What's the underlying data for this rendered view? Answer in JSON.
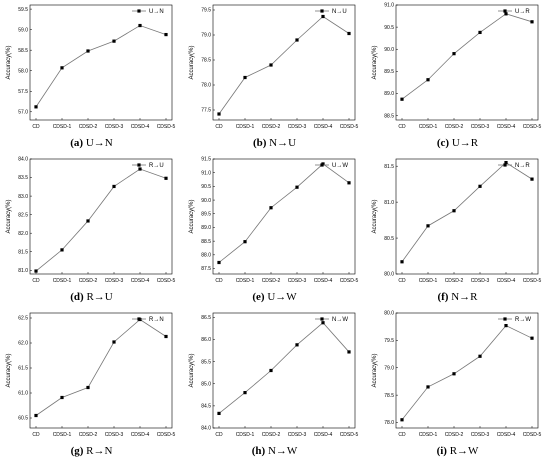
{
  "chart_data": [
    {
      "type": "line",
      "letter": "(a)",
      "subtitle": "U→N",
      "legend": "U→N",
      "ylabel": "Accuracy(%)",
      "categories": [
        "CD",
        "CDSD-1",
        "CDSD-2",
        "CDSD-3",
        "CDSD-4",
        "CDSD-5"
      ],
      "ylim": [
        56.8,
        59.6
      ],
      "yticks": [
        "57.0",
        "57.5",
        "58.0",
        "58.5",
        "59.0",
        "59.5"
      ],
      "ytick_values": [
        57.0,
        57.5,
        58.0,
        58.5,
        59.0,
        59.5
      ],
      "series": [
        {
          "values": [
            57.12,
            58.07,
            58.48,
            58.72,
            59.1,
            58.88
          ]
        }
      ]
    },
    {
      "type": "line",
      "letter": "(b)",
      "subtitle": "N→U",
      "legend": "N→U",
      "ylabel": "Accuracy(%)",
      "categories": [
        "CD",
        "CDSD-1",
        "CDSD-2",
        "CDSD-3",
        "CDSD-4",
        "CDSD-5"
      ],
      "ylim": [
        77.3,
        79.6
      ],
      "yticks": [
        "77.5",
        "78.0",
        "78.5",
        "79.0",
        "79.5"
      ],
      "ytick_values": [
        77.5,
        78.0,
        78.5,
        79.0,
        79.5
      ],
      "series": [
        {
          "values": [
            77.42,
            78.15,
            78.4,
            78.9,
            79.37,
            79.03
          ]
        }
      ]
    },
    {
      "type": "line",
      "letter": "(c)",
      "subtitle": "U→R",
      "legend": "U→R",
      "ylabel": "Accuracy(%)",
      "categories": [
        "CD",
        "CDSD-1",
        "CDSD-2",
        "CDSD-3",
        "CDSD-4",
        "CDSD-5"
      ],
      "ylim": [
        88.4,
        91.0
      ],
      "yticks": [
        "88.5",
        "89.0",
        "89.5",
        "90.0",
        "90.5",
        "91.0"
      ],
      "ytick_values": [
        88.5,
        89.0,
        89.5,
        90.0,
        90.5,
        91.0
      ],
      "series": [
        {
          "values": [
            88.87,
            89.31,
            89.9,
            90.38,
            90.8,
            90.62
          ]
        }
      ]
    },
    {
      "type": "line",
      "letter": "(d)",
      "subtitle": "R→U",
      "legend": "R→U",
      "ylabel": "Accuracy(%)",
      "categories": [
        "CD",
        "CDSD-1",
        "CDSD-2",
        "CDSD-3",
        "CDSD-4",
        "CDSD-5"
      ],
      "ylim": [
        80.9,
        84.0
      ],
      "yticks": [
        "81.0",
        "81.5",
        "82.0",
        "82.5",
        "83.0",
        "83.5",
        "84.0"
      ],
      "ytick_values": [
        81.0,
        81.5,
        82.0,
        82.5,
        83.0,
        83.5,
        84.0
      ],
      "series": [
        {
          "values": [
            80.98,
            81.55,
            82.33,
            83.26,
            83.73,
            83.48
          ]
        }
      ]
    },
    {
      "type": "line",
      "letter": "(e)",
      "subtitle": "U→W",
      "legend": "U→W",
      "ylabel": "Accuracy(%)",
      "categories": [
        "CD",
        "CDSD-1",
        "CDSD-2",
        "CDSD-3",
        "CDSD-4",
        "CDSD-5"
      ],
      "ylim": [
        87.3,
        91.5
      ],
      "yticks": [
        "87.5",
        "88.0",
        "88.5",
        "89.0",
        "89.5",
        "90.0",
        "90.5",
        "91.0",
        "91.5"
      ],
      "ytick_values": [
        87.5,
        88.0,
        88.5,
        89.0,
        89.5,
        90.0,
        90.5,
        91.0,
        91.5
      ],
      "series": [
        {
          "values": [
            87.72,
            88.48,
            89.72,
            90.47,
            91.32,
            90.63
          ]
        }
      ]
    },
    {
      "type": "line",
      "letter": "(f)",
      "subtitle": "N→R",
      "legend": "N→R",
      "ylabel": "Accuracy(%)",
      "categories": [
        "CD",
        "CDSD-1",
        "CDSD-2",
        "CDSD-3",
        "CDSD-4",
        "CDSD-5"
      ],
      "ylim": [
        80.0,
        81.6
      ],
      "yticks": [
        "80.0",
        "80.5",
        "81.0",
        "81.5"
      ],
      "ytick_values": [
        80.0,
        80.5,
        81.0,
        81.5
      ],
      "series": [
        {
          "values": [
            80.17,
            80.67,
            80.88,
            81.22,
            81.55,
            81.32
          ]
        }
      ]
    },
    {
      "type": "line",
      "letter": "(g)",
      "subtitle": "R→N",
      "legend": "R→N",
      "ylabel": "Accuracy(%)",
      "categories": [
        "CD",
        "CDSD-1",
        "CDSD-2",
        "CDSD-3",
        "CDSD-4",
        "CDSD-5"
      ],
      "ylim": [
        60.3,
        62.6
      ],
      "yticks": [
        "60.5",
        "61.0",
        "61.5",
        "62.0",
        "62.5"
      ],
      "ytick_values": [
        60.5,
        61.0,
        61.5,
        62.0,
        62.5
      ],
      "series": [
        {
          "values": [
            60.55,
            60.91,
            61.11,
            62.02,
            62.47,
            62.13
          ]
        }
      ]
    },
    {
      "type": "line",
      "letter": "(h)",
      "subtitle": "N→W",
      "legend": "N→W",
      "ylabel": "Accuracy(%)",
      "categories": [
        "CD",
        "CDSD-1",
        "CDSD-2",
        "CDSD-3",
        "CDSD-4",
        "CDSD-5"
      ],
      "ylim": [
        84.0,
        86.6
      ],
      "yticks": [
        "84.0",
        "84.5",
        "85.0",
        "85.5",
        "86.0",
        "86.5"
      ],
      "ytick_values": [
        84.0,
        84.5,
        85.0,
        85.5,
        86.0,
        86.5
      ],
      "series": [
        {
          "values": [
            84.33,
            84.8,
            85.3,
            85.88,
            86.38,
            85.72
          ]
        }
      ]
    },
    {
      "type": "line",
      "letter": "(i)",
      "subtitle": "R→W",
      "legend": "R→W",
      "ylabel": "Accuracy(%)",
      "categories": [
        "CD",
        "CDSD-1",
        "CDSD-2",
        "CDSD-3",
        "CDSD-4",
        "CDSD-5"
      ],
      "ylim": [
        77.9,
        80.0
      ],
      "yticks": [
        "78.0",
        "78.5",
        "79.0",
        "79.5",
        "80.0"
      ],
      "ytick_values": [
        78.0,
        78.5,
        79.0,
        79.5,
        80.0
      ],
      "series": [
        {
          "values": [
            78.05,
            78.65,
            78.89,
            79.21,
            79.77,
            79.54
          ]
        }
      ]
    }
  ]
}
